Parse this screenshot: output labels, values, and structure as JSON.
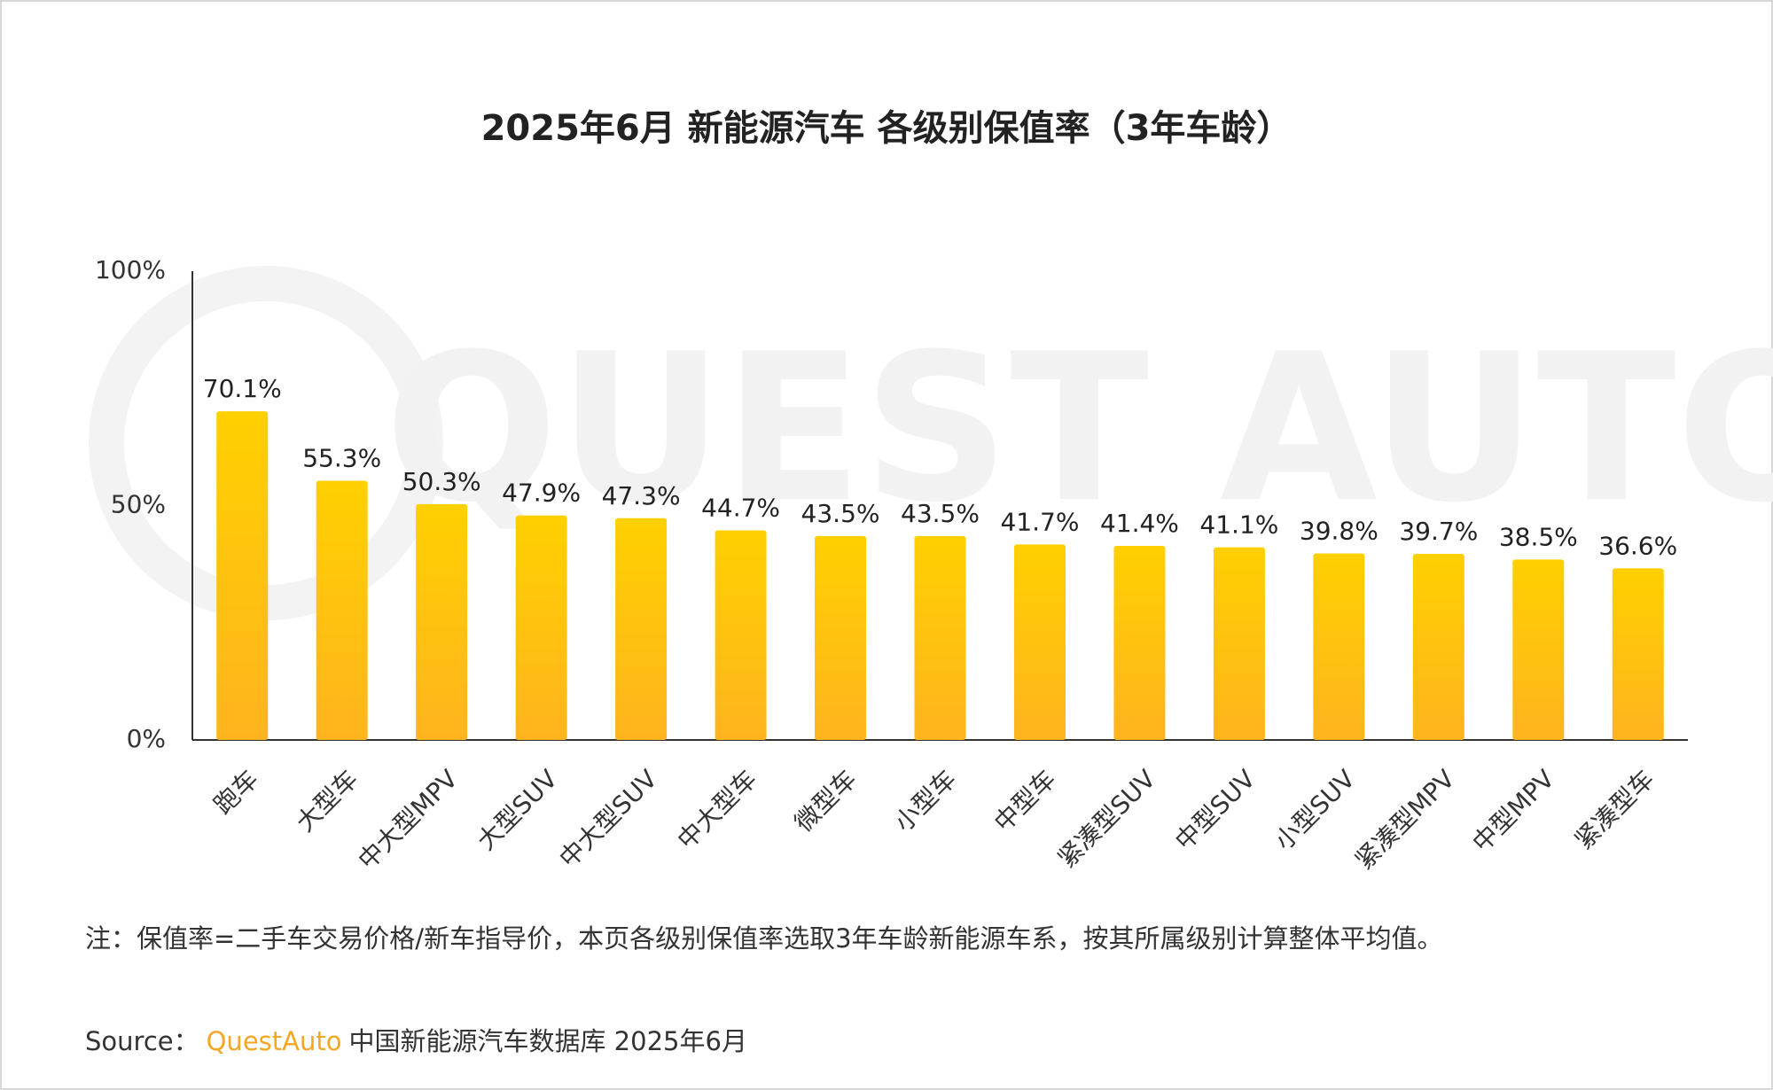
{
  "chart_data": {
    "type": "bar",
    "title": "2025年6月 新能源汽车 各级别保值率（3年车龄）",
    "watermark": "QUEST AUTO",
    "categories": [
      "跑车",
      "大型车",
      "中大型MPV",
      "大型SUV",
      "中大型SUV",
      "中大型车",
      "微型车",
      "小型车",
      "中型车",
      "紧凑型SUV",
      "中型SUV",
      "小型SUV",
      "紧凑型MPV",
      "中型MPV",
      "紧凑型车"
    ],
    "values": [
      70.1,
      55.3,
      50.3,
      47.9,
      47.3,
      44.7,
      43.5,
      43.5,
      41.7,
      41.4,
      41.1,
      39.8,
      39.7,
      38.5,
      36.6
    ],
    "value_labels": [
      "70.1%",
      "55.3%",
      "50.3%",
      "47.9%",
      "47.3%",
      "44.7%",
      "43.5%",
      "43.5%",
      "41.7%",
      "41.4%",
      "41.1%",
      "39.8%",
      "39.7%",
      "38.5%",
      "36.6%"
    ],
    "colors": [
      "#ffd000",
      "#ffb41e"
    ],
    "ylim": [
      0,
      100
    ],
    "yticks": [
      {
        "value": 0,
        "label": "0%"
      },
      {
        "value": 50,
        "label": "50%"
      },
      {
        "value": 100,
        "label": "100%"
      }
    ],
    "grid": false,
    "note": "注：保值率=二手车交易价格/新车指导价，本页各级别保值率选取3年车龄新能源车系，按其所属级别计算整体平均值。",
    "source_prefix": "Source：",
    "source_brand": "QuestAuto",
    "source_text": "中国新能源汽车数据库 2025年6月"
  }
}
